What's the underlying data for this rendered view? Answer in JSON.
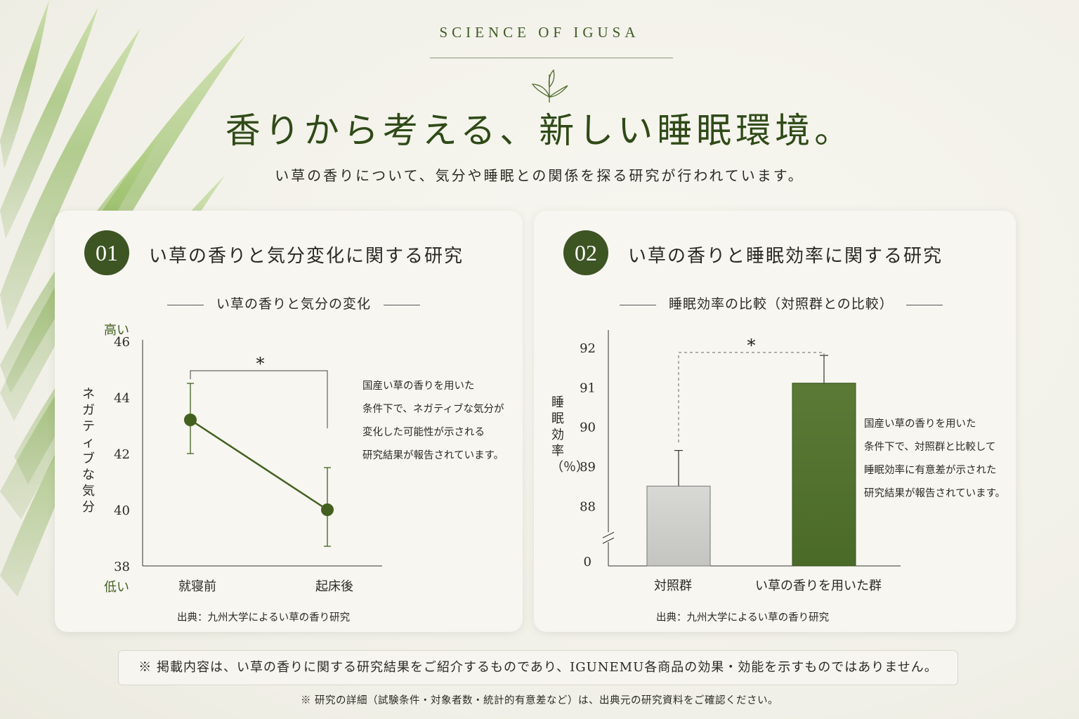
{
  "header": {
    "kicker": "SCIENCE OF IGUSA",
    "title": "香りから考える、新しい睡眠環境。",
    "lead": "い草の香りについて、気分や睡眠との関係を探る研究が行われています。"
  },
  "cards": [
    {
      "number": "01",
      "title": "い草の香りと気分変化に関する研究",
      "chart_title": "い草の香りと気分の変化",
      "y_label": "ネガティブな気分",
      "y_high": "高い",
      "y_low": "低い",
      "description": [
        "国産い草の香りを用いた",
        "条件下で、ネガティブな気分が",
        "変化した可能性が示される",
        "研究結果が報告されています。"
      ],
      "source": "出典：九州大学によるい草の香り研究"
    },
    {
      "number": "02",
      "title": "い草の香りと睡眠効率に関する研究",
      "chart_title": "睡眠効率の比較（対照群との比較）",
      "y_label": "睡眠効率（％）",
      "description": [
        "国産い草の香りを用いた",
        "条件下で、対照群と比較して",
        "睡眠効率に有意差が示された",
        "研究結果が報告されています。"
      ],
      "source": "出典：九州大学によるい草の香り研究"
    }
  ],
  "chart_data": [
    {
      "type": "line",
      "title": "い草の香りと気分の変化",
      "xlabel": "",
      "ylabel": "ネガティブな気分",
      "categories": [
        "就寝前",
        "起床後"
      ],
      "values": [
        43.2,
        40.0
      ],
      "error_low": [
        42.0,
        38.7
      ],
      "error_high": [
        44.5,
        41.5
      ],
      "ylim": [
        38,
        46
      ],
      "yticks": [
        38,
        40,
        42,
        44,
        46
      ],
      "significance": "*",
      "color": "#43601f"
    },
    {
      "type": "bar",
      "title": "睡眠効率の比較（対照群との比較）",
      "xlabel": "",
      "ylabel": "睡眠効率（％）",
      "categories": [
        "対照群",
        "い草の香りを用いた群"
      ],
      "values": [
        88.5,
        91.1
      ],
      "error_high": [
        89.4,
        91.8
      ],
      "ylim": [
        87.3,
        92.3
      ],
      "yticks": [
        88,
        89,
        90,
        91,
        92
      ],
      "axis_break_label": "0",
      "significance": "*",
      "colors": [
        "#c4c4c0",
        "#5b7a36"
      ]
    }
  ],
  "notice": "※ 掲載内容は、い草の香りに関する研究結果をご紹介するものであり、IGUNEMU各商品の効果・効能を示すものではありません。",
  "footnote": "※ 研究の詳細（試験条件・対象者数・統計的有意差など）は、出典元の研究資料をご確認ください。"
}
